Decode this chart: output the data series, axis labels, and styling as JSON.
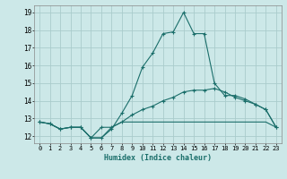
{
  "xlabel": "Humidex (Indice chaleur)",
  "background_color": "#cce8e8",
  "grid_color": "#aacccc",
  "line_color": "#1a6e6a",
  "x_values": [
    0,
    1,
    2,
    3,
    4,
    5,
    6,
    7,
    8,
    9,
    10,
    11,
    12,
    13,
    14,
    15,
    16,
    17,
    18,
    19,
    20,
    21,
    22,
    23
  ],
  "series": [
    [
      12.8,
      12.7,
      12.4,
      12.5,
      12.5,
      11.9,
      11.9,
      12.4,
      13.3,
      14.3,
      15.9,
      16.7,
      17.8,
      17.9,
      19.0,
      17.8,
      17.8,
      15.0,
      14.3,
      14.3,
      14.1,
      13.8,
      13.5,
      12.5
    ],
    [
      12.8,
      12.7,
      12.4,
      12.5,
      12.5,
      11.9,
      12.5,
      12.5,
      12.8,
      13.2,
      13.5,
      13.7,
      14.0,
      14.2,
      14.5,
      14.6,
      14.6,
      14.7,
      14.5,
      14.2,
      14.0,
      13.8,
      13.5,
      12.5
    ],
    [
      12.8,
      12.7,
      12.4,
      12.5,
      12.5,
      11.9,
      11.9,
      12.5,
      12.8,
      12.8,
      12.8,
      12.8,
      12.8,
      12.8,
      12.8,
      12.8,
      12.8,
      12.8,
      12.8,
      12.8,
      12.8,
      12.8,
      12.8,
      12.5
    ]
  ],
  "ylim": [
    11.6,
    19.4
  ],
  "yticks": [
    12,
    13,
    14,
    15,
    16,
    17,
    18,
    19
  ],
  "xlim": [
    -0.5,
    23.5
  ],
  "xticks": [
    0,
    1,
    2,
    3,
    4,
    5,
    6,
    7,
    8,
    9,
    10,
    11,
    12,
    13,
    14,
    15,
    16,
    17,
    18,
    19,
    20,
    21,
    22,
    23
  ],
  "xtick_labels": [
    "0",
    "1",
    "2",
    "3",
    "4",
    "5",
    "6",
    "7",
    "8",
    "9",
    "10",
    "11",
    "12",
    "13",
    "14",
    "15",
    "16",
    "17",
    "18",
    "19",
    "20",
    "21",
    "22",
    "23"
  ]
}
